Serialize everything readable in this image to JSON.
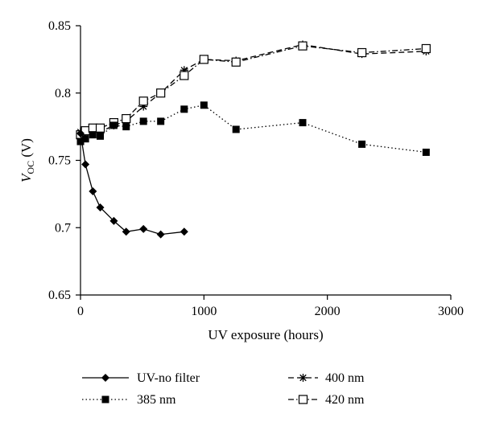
{
  "chart_data": {
    "type": "line",
    "title": "",
    "xlabel": "UV exposure (hours)",
    "ylabel_main": "V",
    "ylabel_sub": "OC",
    "ylabel_unit": " (V)",
    "xlim": [
      0,
      3000
    ],
    "ylim": [
      0.65,
      0.85
    ],
    "xticks": [
      0,
      1000,
      2000,
      3000
    ],
    "xtick_labels": [
      "0",
      "1000",
      "2000",
      "3000"
    ],
    "yticks": [
      0.65,
      0.7,
      0.75,
      0.8,
      0.85
    ],
    "ytick_labels": [
      "0.65",
      "0.7",
      "0.75",
      "0.8",
      "0.85"
    ],
    "grid": false,
    "legend_position": "bottom",
    "series": [
      {
        "name": "UV-no filter",
        "marker": "diamond-filled",
        "line": "solid",
        "x": [
          0,
          40,
          100,
          160,
          270,
          370,
          510,
          650,
          840
        ],
        "y": [
          0.77,
          0.747,
          0.727,
          0.715,
          0.705,
          0.697,
          0.699,
          0.695,
          0.697
        ]
      },
      {
        "name": "385 nm",
        "marker": "square-filled",
        "line": "dotted",
        "x": [
          0,
          40,
          100,
          160,
          270,
          370,
          510,
          650,
          840,
          1000,
          1260,
          1800,
          2280,
          2800
        ],
        "y": [
          0.764,
          0.766,
          0.769,
          0.768,
          0.776,
          0.775,
          0.779,
          0.779,
          0.788,
          0.791,
          0.773,
          0.778,
          0.762,
          0.756
        ]
      },
      {
        "name": "400 nm",
        "marker": "asterisk",
        "line": "dashed",
        "x": [
          0,
          40,
          100,
          160,
          270,
          370,
          510,
          650,
          840,
          1000,
          1260,
          1800,
          2280,
          2800
        ],
        "y": [
          0.771,
          0.771,
          0.771,
          0.771,
          0.776,
          0.779,
          0.79,
          0.8,
          0.817,
          0.825,
          0.824,
          0.836,
          0.829,
          0.831
        ]
      },
      {
        "name": "420 nm",
        "marker": "square-open",
        "line": "dashdot",
        "x": [
          0,
          40,
          100,
          160,
          270,
          370,
          510,
          650,
          840,
          1000,
          1260,
          1800,
          2280,
          2800
        ],
        "y": [
          0.769,
          0.772,
          0.774,
          0.774,
          0.778,
          0.781,
          0.794,
          0.8,
          0.813,
          0.825,
          0.823,
          0.835,
          0.83,
          0.833
        ]
      }
    ]
  }
}
